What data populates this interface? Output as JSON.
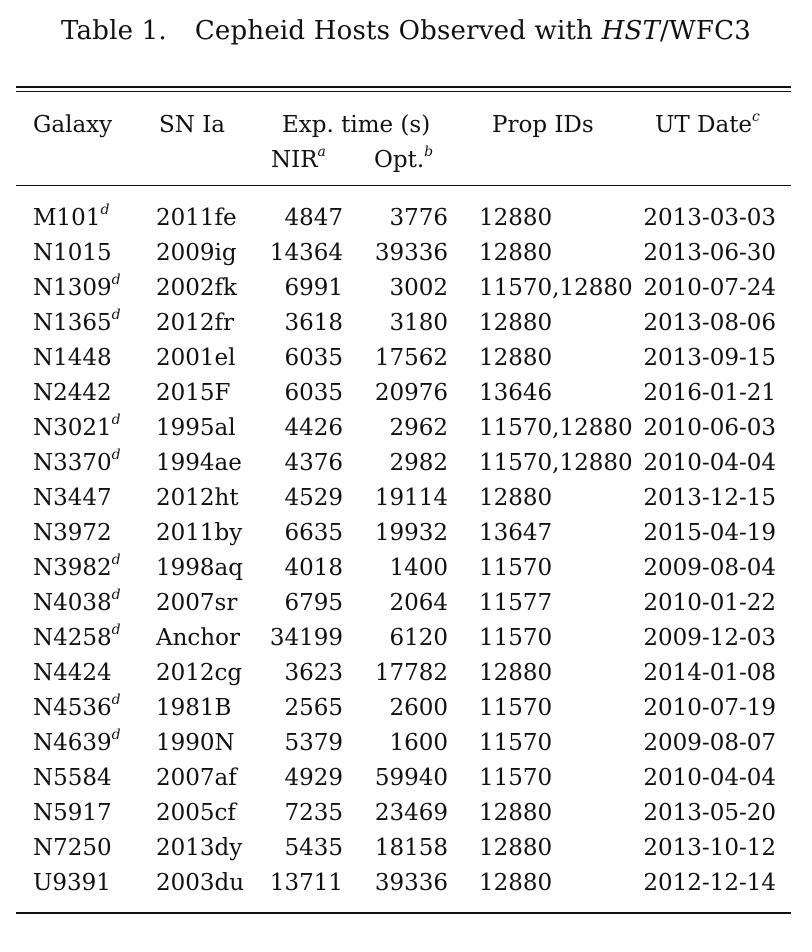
{
  "caption": {
    "label": "Table 1.",
    "text_before": "Cepheid Hosts Observed with",
    "instrument_italic": "HST",
    "text_after": "/WFC3"
  },
  "header": {
    "galaxy": "Galaxy",
    "sn": "SN Ia",
    "exptime": "Exp. time (s)",
    "nir": "NIR",
    "nir_note": "a",
    "opt": "Opt.",
    "opt_note": "b",
    "propids": "Prop IDs",
    "date": "UT Date",
    "date_note": "c"
  },
  "rows": [
    {
      "galaxy": "M101",
      "note": "d",
      "sn": "2011fe",
      "nir": "4847",
      "opt": "3776",
      "pid": "12880",
      "date": "2013-03-03"
    },
    {
      "galaxy": "N1015",
      "note": "",
      "sn": "2009ig",
      "nir": "14364",
      "opt": "39336",
      "pid": "12880",
      "date": "2013-06-30"
    },
    {
      "galaxy": "N1309",
      "note": "d",
      "sn": "2002fk",
      "nir": "6991",
      "opt": "3002",
      "pid": "11570,12880",
      "date": "2010-07-24"
    },
    {
      "galaxy": "N1365",
      "note": "d",
      "sn": "2012fr",
      "nir": "3618",
      "opt": "3180",
      "pid": "12880",
      "date": "2013-08-06"
    },
    {
      "galaxy": "N1448",
      "note": "",
      "sn": "2001el",
      "nir": "6035",
      "opt": "17562",
      "pid": "12880",
      "date": "2013-09-15"
    },
    {
      "galaxy": "N2442",
      "note": "",
      "sn": "2015F",
      "nir": "6035",
      "opt": "20976",
      "pid": "13646",
      "date": "2016-01-21"
    },
    {
      "galaxy": "N3021",
      "note": "d",
      "sn": "1995al",
      "nir": "4426",
      "opt": "2962",
      "pid": "11570,12880",
      "date": "2010-06-03"
    },
    {
      "galaxy": "N3370",
      "note": "d",
      "sn": "1994ae",
      "nir": "4376",
      "opt": "2982",
      "pid": "11570,12880",
      "date": "2010-04-04"
    },
    {
      "galaxy": "N3447",
      "note": "",
      "sn": "2012ht",
      "nir": "4529",
      "opt": "19114",
      "pid": "12880",
      "date": "2013-12-15"
    },
    {
      "galaxy": "N3972",
      "note": "",
      "sn": "2011by",
      "nir": "6635",
      "opt": "19932",
      "pid": "13647",
      "date": "2015-04-19"
    },
    {
      "galaxy": "N3982",
      "note": "d",
      "sn": "1998aq",
      "nir": "4018",
      "opt": "1400",
      "pid": "11570",
      "date": "2009-08-04"
    },
    {
      "galaxy": "N4038",
      "note": "d",
      "sn": "2007sr",
      "nir": "6795",
      "opt": "2064",
      "pid": "11577",
      "date": "2010-01-22"
    },
    {
      "galaxy": "N4258",
      "note": "d",
      "sn": "Anchor",
      "nir": "34199",
      "opt": "6120",
      "pid": "11570",
      "date": "2009-12-03"
    },
    {
      "galaxy": "N4424",
      "note": "",
      "sn": "2012cg",
      "nir": "3623",
      "opt": "17782",
      "pid": "12880",
      "date": "2014-01-08"
    },
    {
      "galaxy": "N4536",
      "note": "d",
      "sn": "1981B",
      "nir": "2565",
      "opt": "2600",
      "pid": "11570",
      "date": "2010-07-19"
    },
    {
      "galaxy": "N4639",
      "note": "d",
      "sn": "1990N",
      "nir": "5379",
      "opt": "1600",
      "pid": "11570",
      "date": "2009-08-07"
    },
    {
      "galaxy": "N5584",
      "note": "",
      "sn": "2007af",
      "nir": "4929",
      "opt": "59940",
      "pid": "11570",
      "date": "2010-04-04"
    },
    {
      "galaxy": "N5917",
      "note": "",
      "sn": "2005cf",
      "nir": "7235",
      "opt": "23469",
      "pid": "12880",
      "date": "2013-05-20"
    },
    {
      "galaxy": "N7250",
      "note": "",
      "sn": "2013dy",
      "nir": "5435",
      "opt": "18158",
      "pid": "12880",
      "date": "2013-10-12"
    },
    {
      "galaxy": "U9391",
      "note": "",
      "sn": "2003du",
      "nir": "13711",
      "opt": "39336",
      "pid": "12880",
      "date": "2012-12-14"
    }
  ]
}
